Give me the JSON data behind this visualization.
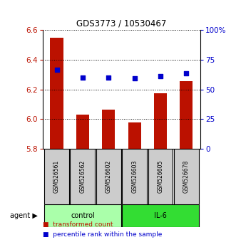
{
  "title": "GDS3773 / 10530467",
  "samples": [
    "GSM526561",
    "GSM526562",
    "GSM526602",
    "GSM526603",
    "GSM526605",
    "GSM526678"
  ],
  "bar_values": [
    6.55,
    6.03,
    6.065,
    5.975,
    6.175,
    6.255
  ],
  "dot_values": [
    6.335,
    6.28,
    6.28,
    6.275,
    6.29,
    6.31
  ],
  "ylim_left": [
    5.8,
    6.6
  ],
  "ylim_right": [
    0,
    100
  ],
  "yticks_left": [
    5.8,
    6.0,
    6.2,
    6.4,
    6.6
  ],
  "yticks_right": [
    0,
    25,
    50,
    75,
    100
  ],
  "yticklabels_right": [
    "0",
    "25",
    "50",
    "75",
    "100%"
  ],
  "bar_color": "#bb1100",
  "dot_color": "#0000cc",
  "groups": [
    {
      "label": "control",
      "indices": [
        0,
        1,
        2
      ],
      "color": "#aaffaa"
    },
    {
      "label": "IL-6",
      "indices": [
        3,
        4,
        5
      ],
      "color": "#33dd33"
    }
  ],
  "agent_label": "agent",
  "legend_bar_label": "transformed count",
  "legend_dot_label": "percentile rank within the sample",
  "sample_box_color": "#cccccc",
  "figsize": [
    3.31,
    3.54
  ],
  "dpi": 100
}
